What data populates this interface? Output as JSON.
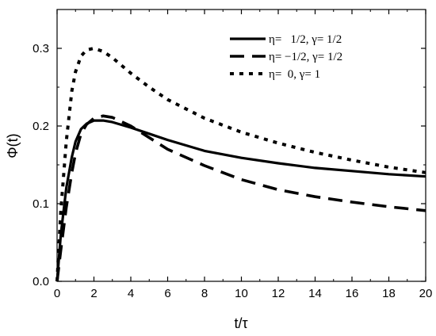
{
  "chart_data": {
    "type": "line",
    "xlabel": "t/τ",
    "ylabel": "Φ(t)",
    "xlim": [
      0,
      20
    ],
    "ylim": [
      0,
      0.35
    ],
    "xticks": [
      0,
      2,
      4,
      6,
      8,
      10,
      12,
      14,
      16,
      18,
      20
    ],
    "yticks": [
      0.0,
      0.1,
      0.2,
      0.3
    ],
    "ytick_labels": [
      "0.0",
      "0.1",
      "0.2",
      "0.3"
    ],
    "grid": false,
    "legend_position": "top-right",
    "series": [
      {
        "name": "η=   1/2, γ= 1/2",
        "style": "solid",
        "color": "#000000",
        "x": [
          0,
          0.2,
          0.5,
          0.8,
          1.0,
          1.3,
          1.6,
          2.0,
          2.5,
          3.0,
          4.0,
          5.0,
          6.0,
          8.0,
          10.0,
          12.0,
          14.0,
          16.0,
          18.0,
          20.0
        ],
        "y": [
          0,
          0.06,
          0.12,
          0.16,
          0.18,
          0.196,
          0.203,
          0.207,
          0.207,
          0.205,
          0.198,
          0.19,
          0.182,
          0.168,
          0.159,
          0.152,
          0.146,
          0.142,
          0.138,
          0.135
        ]
      },
      {
        "name": "η= −1/2, γ= 1/2",
        "style": "dashed",
        "color": "#000000",
        "x": [
          0,
          0.2,
          0.5,
          0.8,
          1.0,
          1.3,
          1.6,
          2.0,
          2.5,
          3.0,
          4.0,
          5.0,
          6.0,
          8.0,
          10.0,
          12.0,
          14.0,
          16.0,
          18.0,
          20.0
        ],
        "y": [
          0,
          0.04,
          0.095,
          0.14,
          0.165,
          0.19,
          0.202,
          0.21,
          0.213,
          0.211,
          0.2,
          0.185,
          0.17,
          0.149,
          0.131,
          0.118,
          0.109,
          0.102,
          0.096,
          0.091
        ]
      },
      {
        "name": "η=  0, γ= 1",
        "style": "dotted",
        "color": "#000000",
        "x": [
          0,
          0.2,
          0.5,
          0.8,
          1.0,
          1.3,
          1.6,
          2.0,
          2.5,
          3.0,
          4.0,
          5.0,
          6.0,
          8.0,
          10.0,
          12.0,
          14.0,
          16.0,
          18.0,
          20.0
        ],
        "y": [
          0,
          0.09,
          0.18,
          0.245,
          0.27,
          0.29,
          0.298,
          0.3,
          0.296,
          0.288,
          0.268,
          0.25,
          0.234,
          0.21,
          0.192,
          0.178,
          0.166,
          0.156,
          0.147,
          0.14
        ]
      }
    ]
  }
}
